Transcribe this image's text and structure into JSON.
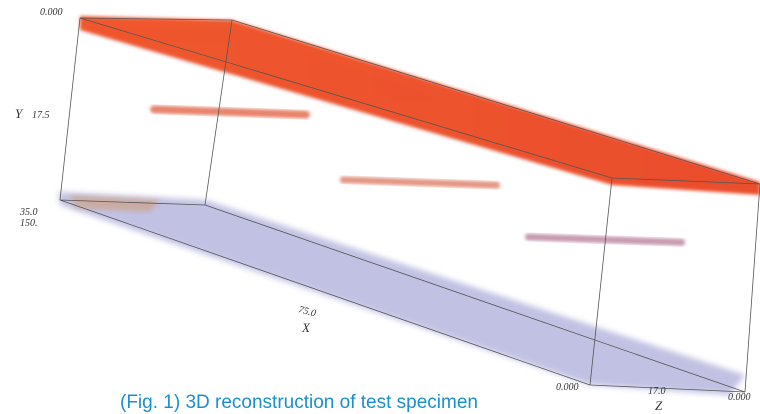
{
  "figure": {
    "caption": "(Fig. 1) 3D reconstruction of test specimen",
    "labels": {
      "y_top": "0.000",
      "y_axis": "Y",
      "y_mid": "17.5",
      "y_bottom": "35.0",
      "x_start": "150.",
      "x_mid": "75.0",
      "x_axis": "X",
      "x_end": "0.000",
      "z_mid": "17.0",
      "z_axis": "Z",
      "z_end": "0.000"
    }
  }
}
